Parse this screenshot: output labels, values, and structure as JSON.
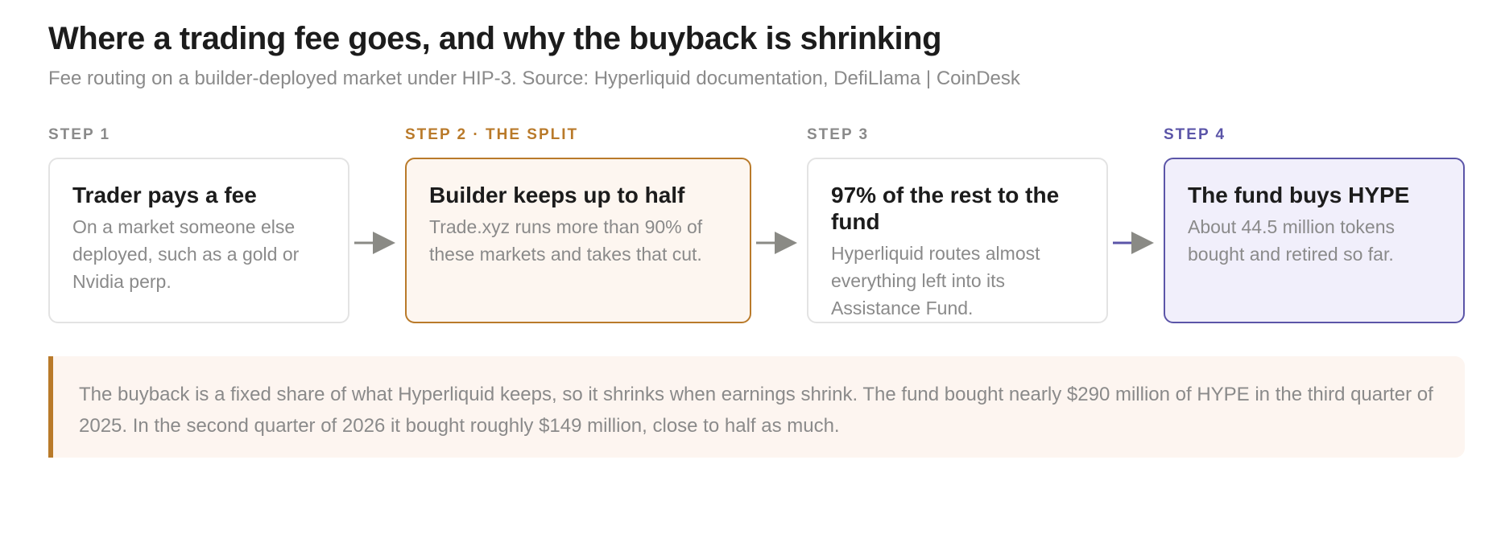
{
  "header": {
    "title": "Where a trading fee goes, and why the buyback is shrinking",
    "subtitle": "Fee routing on a builder-deployed market under HIP-3. Source: Hyperliquid documentation, DefiLlama | CoinDesk"
  },
  "steps": [
    {
      "label": "STEP 1",
      "heading": "Trader pays a fee",
      "body": "On a market someone else deployed, such as a gold or Nvidia perp."
    },
    {
      "label": "STEP 2 · THE SPLIT",
      "heading": "Builder keeps up to half",
      "body": "Trade.xyz runs more than 90% of these markets and takes that cut."
    },
    {
      "label": "STEP 3",
      "heading": "97% of the rest to the fund",
      "body": "Hyperliquid routes almost everything left into its Assistance Fund."
    },
    {
      "label": "STEP 4",
      "heading": "The fund buys HYPE",
      "body": "About 44.5 million tokens bought and retired so far."
    }
  ],
  "note": {
    "text": "The buyback is a fixed share of what Hyperliquid keeps, so it shrinks when earnings shrink. The fund bought nearly $290 million of HYPE in the third quarter of 2025. In the second quarter of 2026 it bought roughly $149 million, close to half as much."
  }
}
